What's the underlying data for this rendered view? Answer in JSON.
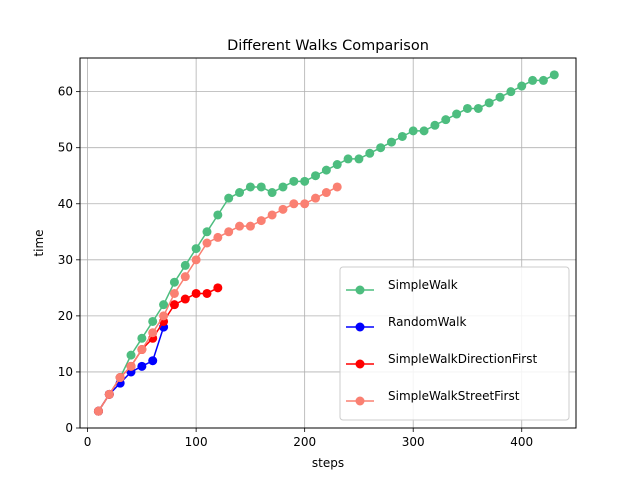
{
  "chart_data": {
    "type": "line",
    "title": "Different Walks Comparison",
    "xlabel": "steps",
    "ylabel": "time",
    "xlim": [
      -7,
      450
    ],
    "ylim": [
      0,
      66
    ],
    "xticks": [
      0,
      100,
      200,
      300,
      400
    ],
    "yticks": [
      0,
      10,
      20,
      30,
      40,
      50,
      60
    ],
    "grid": true,
    "legend_position": "lower-right",
    "series": [
      {
        "name": "SimpleWalk",
        "color": "#4dbd7f",
        "x": [
          10,
          20,
          30,
          40,
          50,
          60,
          70,
          80,
          90,
          100,
          110,
          120,
          130,
          140,
          150,
          160,
          170,
          180,
          190,
          200,
          210,
          220,
          230,
          240,
          250,
          260,
          270,
          280,
          290,
          300,
          310,
          320,
          330,
          340,
          350,
          360,
          370,
          380,
          390,
          400,
          410,
          420,
          430
        ],
        "y": [
          3,
          6,
          9,
          13,
          16,
          19,
          22,
          26,
          29,
          32,
          35,
          38,
          41,
          42,
          43,
          43,
          42,
          43,
          44,
          44,
          45,
          46,
          47,
          48,
          48,
          49,
          50,
          51,
          52,
          53,
          53,
          54,
          55,
          56,
          57,
          57,
          58,
          59,
          60,
          61,
          62,
          62,
          63
        ]
      },
      {
        "name": "RandomWalk",
        "color": "#0000ff",
        "x": [
          10,
          20,
          30,
          40,
          50,
          60,
          70
        ],
        "y": [
          3,
          6,
          8,
          10,
          11,
          12,
          18
        ]
      },
      {
        "name": "SimpleWalkDirectionFirst",
        "color": "#ff0000",
        "x": [
          10,
          20,
          30,
          40,
          50,
          60,
          70,
          80,
          90,
          100,
          110,
          120
        ],
        "y": [
          3,
          6,
          9,
          11,
          14,
          16,
          19,
          22,
          23,
          24,
          24,
          25
        ]
      },
      {
        "name": "SimpleWalkStreetFirst",
        "color": "#fa8072",
        "x": [
          10,
          20,
          30,
          40,
          50,
          60,
          70,
          80,
          90,
          100,
          110,
          120,
          130,
          140,
          150,
          160,
          170,
          180,
          190,
          200,
          210,
          220,
          230
        ],
        "y": [
          3,
          6,
          9,
          11,
          14,
          17,
          20,
          24,
          27,
          30,
          33,
          34,
          35,
          36,
          36,
          37,
          38,
          39,
          40,
          40,
          41,
          42,
          43
        ]
      }
    ],
    "extra_series_note": ""
  }
}
